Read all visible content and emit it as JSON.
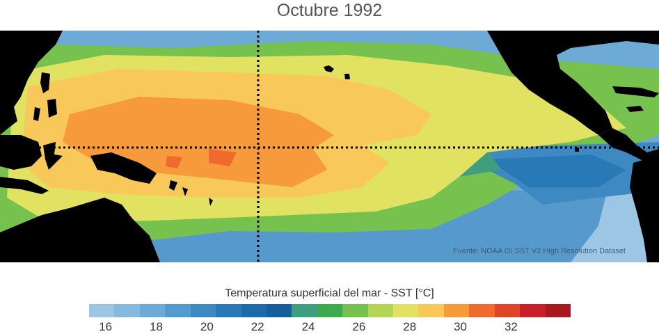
{
  "title": "Octubre 1992",
  "source_text": "Fuente: NOAA OI SST V2 High Resolution Dataset",
  "colorbar": {
    "label": "Temperatura superficial del mar - SST  [°C]",
    "colors": [
      "#9cc6e4",
      "#86b9de",
      "#6eaad6",
      "#5699cc",
      "#3f89c2",
      "#2979b7",
      "#1c6aab",
      "#165d9c",
      "#3f9e7e",
      "#3cab50",
      "#77c24e",
      "#b5d555",
      "#e2e262",
      "#f8c85a",
      "#f69a3c",
      "#ef6b2d",
      "#e04428",
      "#c8202a",
      "#a8181f"
    ],
    "tick_labels": [
      "16",
      "18",
      "20",
      "22",
      "24",
      "26",
      "28",
      "30",
      "32"
    ]
  },
  "map": {
    "colors": {
      "land": "#000000",
      "sst_22": "#1c6aab",
      "sst_24": "#3f9e7e",
      "sst_26": "#77c24e",
      "sst_27": "#e2e262",
      "sst_28": "#f8c85a",
      "sst_29": "#f69a3c",
      "sst_30": "#ef6b2d",
      "grid_line": "#000000"
    }
  }
}
